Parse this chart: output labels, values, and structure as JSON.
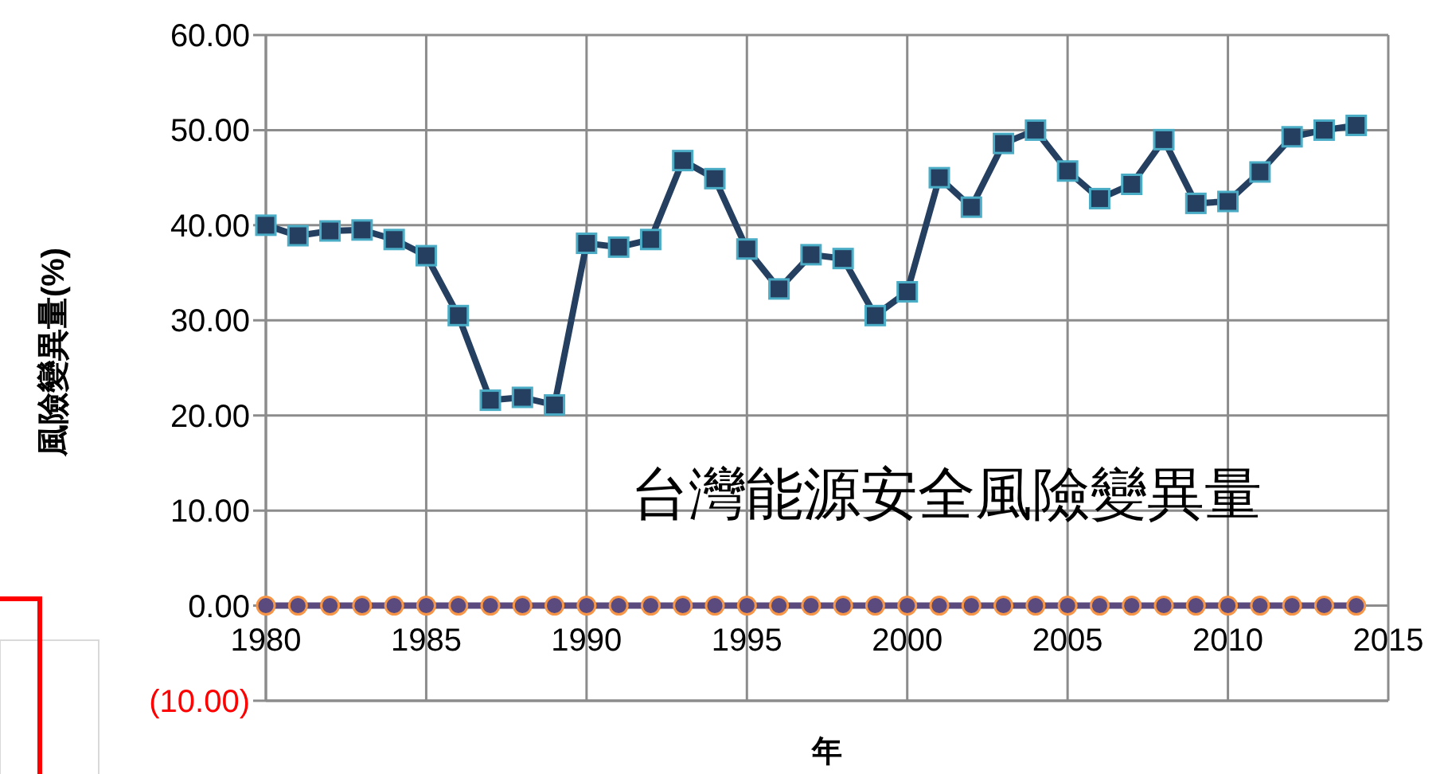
{
  "chart_data": {
    "type": "line",
    "xlabel": "年",
    "ylabel": "風險變異量(%)",
    "annotations": [
      "台灣能源安全風險變異量"
    ],
    "x": [
      1980,
      1981,
      1982,
      1983,
      1984,
      1985,
      1986,
      1987,
      1988,
      1989,
      1990,
      1991,
      1992,
      1993,
      1994,
      1995,
      1996,
      1997,
      1998,
      1999,
      2000,
      2001,
      2002,
      2003,
      2004,
      2005,
      2006,
      2007,
      2008,
      2009,
      2010,
      2011,
      2012,
      2013,
      2014
    ],
    "series": [
      {
        "color": "#243f60",
        "marker": "square",
        "values": [
          40.0,
          38.9,
          39.4,
          39.5,
          38.5,
          36.8,
          30.5,
          21.6,
          21.9,
          21.1,
          38.1,
          37.7,
          38.5,
          46.8,
          44.9,
          37.5,
          33.3,
          36.9,
          36.5,
          30.5,
          33.0,
          45.0,
          41.9,
          48.6,
          50.0,
          45.7,
          42.8,
          44.3,
          49.0,
          42.3,
          42.5,
          45.6,
          49.3,
          50.0,
          50.5
        ]
      },
      {
        "color": "#5b4a7e",
        "marker": "circle",
        "values": [
          0,
          0,
          0,
          0,
          0,
          0,
          0,
          0,
          0,
          0,
          0,
          0,
          0,
          0,
          0,
          0,
          0,
          0,
          0,
          0,
          0,
          0,
          0,
          0,
          0,
          0,
          0,
          0,
          0,
          0,
          0,
          0,
          0,
          0,
          0
        ]
      }
    ],
    "xlim": [
      1980,
      2015
    ],
    "xticks": [
      1980,
      1985,
      1990,
      1995,
      2000,
      2005,
      2010,
      2015
    ],
    "ylim": [
      -10,
      60
    ],
    "yticks": [
      {
        "value": -10,
        "label": "(10.00)"
      },
      {
        "value": 0,
        "label": "0.00"
      },
      {
        "value": 10,
        "label": "10.00"
      },
      {
        "value": 20,
        "label": "20.00"
      },
      {
        "value": 30,
        "label": "30.00"
      },
      {
        "value": 40,
        "label": "40.00"
      },
      {
        "value": 50,
        "label": "50.00"
      },
      {
        "value": 60,
        "label": "60.00"
      }
    ],
    "grid": true,
    "line_style": "solid"
  }
}
